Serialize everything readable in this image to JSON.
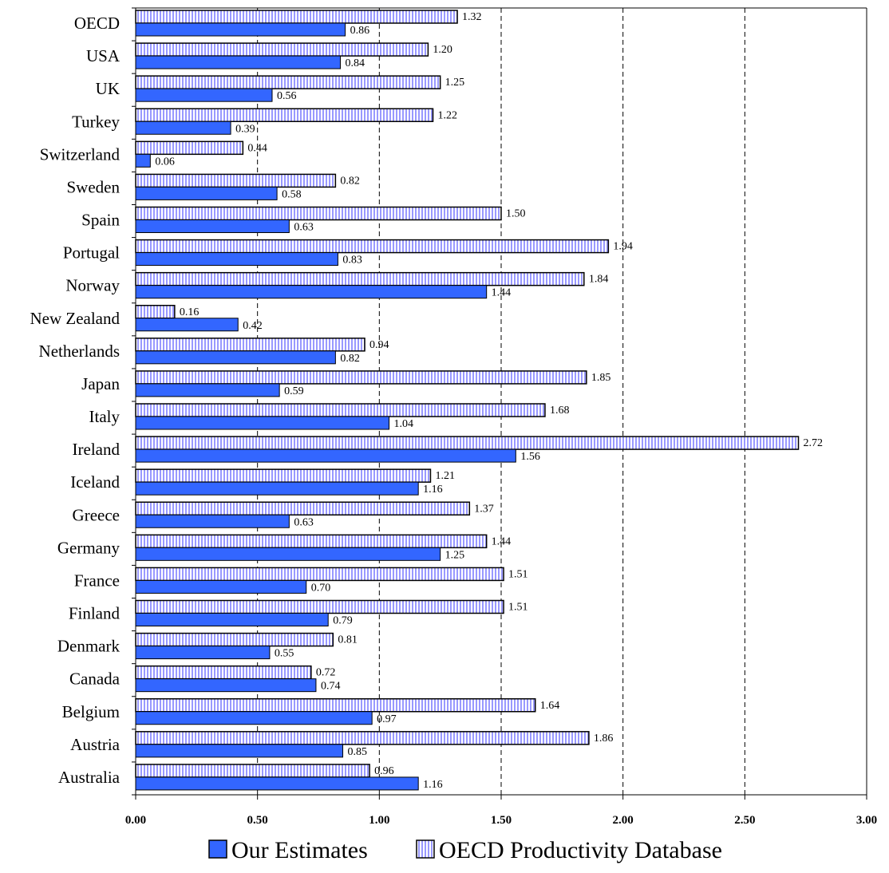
{
  "chart_data": {
    "type": "bar",
    "orientation": "horizontal",
    "categories": [
      "OECD",
      "USA",
      "UK",
      "Turkey",
      "Switzerland",
      "Sweden",
      "Spain",
      "Portugal",
      "Norway",
      "New Zealand",
      "Netherlands",
      "Japan",
      "Italy",
      "Ireland",
      "Iceland",
      "Greece",
      "Germany",
      "France",
      "Finland",
      "Denmark",
      "Canada",
      "Belgium",
      "Austria",
      "Australia"
    ],
    "series": [
      {
        "name": "OECD Productivity Database",
        "color": "#9999ff",
        "pattern": "vertical-stripes",
        "values": [
          1.32,
          1.2,
          1.25,
          1.22,
          0.44,
          0.82,
          1.5,
          1.94,
          1.84,
          0.16,
          0.94,
          1.85,
          1.68,
          2.72,
          1.21,
          1.37,
          1.44,
          1.51,
          1.51,
          0.81,
          0.72,
          1.64,
          1.86,
          0.96
        ],
        "value_labels": [
          "1.32",
          "1.20",
          "1.25",
          "1.22",
          "0.44",
          "0.82",
          "1.50",
          "1.94",
          "1.84",
          "0.16",
          "0.94",
          "1.85",
          "1.68",
          "2.72",
          "1.21",
          "1.37",
          "1.44",
          "1.51",
          "1.51",
          "0.81",
          "0.72",
          "1.64",
          "1.86",
          "0.96"
        ]
      },
      {
        "name": "Our Estimates",
        "color": "#3366ff",
        "pattern": "solid",
        "values": [
          0.86,
          0.84,
          0.56,
          0.39,
          0.06,
          0.58,
          0.63,
          0.83,
          1.44,
          0.42,
          0.82,
          0.59,
          1.04,
          1.56,
          1.16,
          0.63,
          1.25,
          0.7,
          0.79,
          0.55,
          0.74,
          0.97,
          0.85,
          1.16
        ],
        "value_labels": [
          "0.86",
          "0.84",
          "0.56",
          "0.39",
          "0.06",
          "0.58",
          "0.63",
          "0.83",
          "1.44",
          "0.42",
          "0.82",
          "0.59",
          "1.04",
          "1.56",
          "1.16",
          "0.63",
          "1.25",
          "0.70",
          "0.79",
          "0.55",
          "0.74",
          "0.97",
          "0.85",
          "1.16"
        ]
      }
    ],
    "xlim": [
      0,
      3
    ],
    "xticks": [
      0,
      0.5,
      1,
      1.5,
      2,
      2.5,
      3
    ],
    "xtick_labels": [
      "0.00",
      "0.50",
      "1.00",
      "1.50",
      "2.00",
      "2.50",
      "3.00"
    ],
    "grid": "vertical-dashed",
    "legend": {
      "position": "bottom",
      "items": [
        "Our Estimates",
        "OECD Productivity Database"
      ]
    },
    "title": "",
    "xlabel": "",
    "ylabel": ""
  }
}
